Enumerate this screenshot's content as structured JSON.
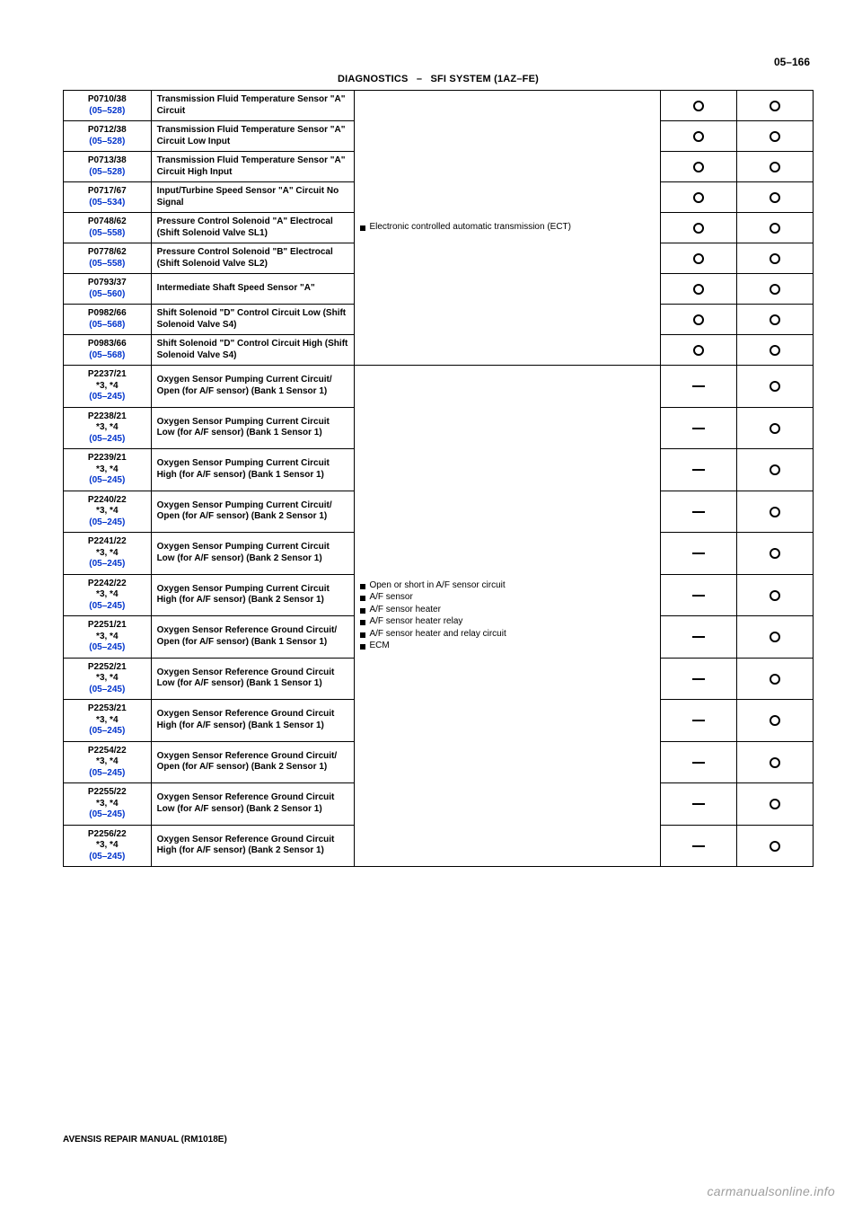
{
  "page_number": "05–166",
  "header_left": "DIAGNOSTICS",
  "header_sep": "–",
  "header_right": "SFI SYSTEM (1AZ–FE)",
  "footer": "AVENSIS REPAIR MANUAL   (RM1018E)",
  "watermark": "carmanualsonline.info",
  "trouble_area_1_lines": [
    "Electronic controlled automatic transmission (ECT)"
  ],
  "trouble_area_2_lines": [
    "Open or short in A/F sensor circuit",
    "A/F sensor",
    "A/F sensor heater",
    "A/F sensor heater relay",
    "A/F sensor heater and relay circuit",
    "ECM"
  ],
  "rows1": [
    {
      "code": "P0710/38",
      "page": "(05–528)",
      "item": "Transmission Fluid Temperature Sensor \"A\" Circuit",
      "mil": "O",
      "mem": "O"
    },
    {
      "code": "P0712/38",
      "page": "(05–528)",
      "item": "Transmission Fluid Temperature Sensor \"A\" Circuit Low Input",
      "mil": "O",
      "mem": "O"
    },
    {
      "code": "P0713/38",
      "page": "(05–528)",
      "item": "Transmission Fluid Temperature Sensor \"A\" Circuit High Input",
      "mil": "O",
      "mem": "O"
    },
    {
      "code": "P0717/67",
      "page": "(05–534)",
      "item": "Input/Turbine Speed Sensor \"A\" Circuit No Signal",
      "mil": "O",
      "mem": "O"
    },
    {
      "code": "P0748/62",
      "page": "(05–558)",
      "item": "Pressure Control Solenoid \"A\" Electrocal (Shift Solenoid Valve SL1)",
      "mil": "O",
      "mem": "O"
    },
    {
      "code": "P0778/62",
      "page": "(05–558)",
      "item": "Pressure Control Solenoid \"B\" Electrocal (Shift Solenoid Valve SL2)",
      "mil": "O",
      "mem": "O"
    },
    {
      "code": "P0793/37",
      "page": "(05–560)",
      "item": "Intermediate Shaft Speed Sensor \"A\"",
      "mil": "O",
      "mem": "O"
    },
    {
      "code": "P0982/66",
      "page": "(05–568)",
      "item": "Shift Solenoid \"D\" Control Circuit Low (Shift Solenoid Valve S4)",
      "mil": "O",
      "mem": "O"
    },
    {
      "code": "P0983/66",
      "page": "(05–568)",
      "item": "Shift Solenoid \"D\" Control Circuit High (Shift Solenoid Valve S4)",
      "mil": "O",
      "mem": "O"
    }
  ],
  "rows2": [
    {
      "code": "P2237/21",
      "note": "*3, *4",
      "page": "(05–245)",
      "item": "Oxygen Sensor Pumping Current Circuit/ Open (for A/F sensor) (Bank 1 Sensor 1)",
      "mil": "-",
      "mem": "O"
    },
    {
      "code": "P2238/21",
      "note": "*3, *4",
      "page": "(05–245)",
      "item": "Oxygen Sensor Pumping Current Circuit Low (for A/F sensor) (Bank 1 Sensor 1)",
      "mil": "-",
      "mem": "O"
    },
    {
      "code": "P2239/21",
      "note": "*3, *4",
      "page": "(05–245)",
      "item": "Oxygen Sensor Pumping Current Circuit High (for A/F sensor) (Bank 1 Sensor 1)",
      "mil": "-",
      "mem": "O"
    },
    {
      "code": "P2240/22",
      "note": "*3, *4",
      "page": "(05–245)",
      "item": "Oxygen Sensor Pumping Current Circuit/ Open (for A/F sensor) (Bank 2 Sensor 1)",
      "mil": "-",
      "mem": "O"
    },
    {
      "code": "P2241/22",
      "note": "*3, *4",
      "page": "(05–245)",
      "item": "Oxygen Sensor Pumping Current Circuit Low (for A/F sensor) (Bank 2 Sensor 1)",
      "mil": "-",
      "mem": "O"
    },
    {
      "code": "P2242/22",
      "note": "*3, *4",
      "page": "(05–245)",
      "item": "Oxygen Sensor Pumping Current Circuit High (for A/F sensor) (Bank 2 Sensor 1)",
      "mil": "-",
      "mem": "O"
    },
    {
      "code": "P2251/21",
      "note": "*3, *4",
      "page": "(05–245)",
      "item": "Oxygen Sensor Reference Ground Circuit/ Open (for A/F sensor) (Bank 1 Sensor 1)",
      "mil": "-",
      "mem": "O"
    },
    {
      "code": "P2252/21",
      "note": "*3, *4",
      "page": "(05–245)",
      "item": "Oxygen Sensor Reference Ground Circuit Low (for A/F sensor) (Bank 1 Sensor 1)",
      "mil": "-",
      "mem": "O"
    },
    {
      "code": "P2253/21",
      "note": "*3, *4",
      "page": "(05–245)",
      "item": "Oxygen Sensor Reference Ground Circuit High (for A/F sensor) (Bank 1 Sensor 1)",
      "mil": "-",
      "mem": "O"
    },
    {
      "code": "P2254/22",
      "note": "*3, *4",
      "page": "(05–245)",
      "item": "Oxygen Sensor Reference Ground Circuit/ Open (for A/F sensor) (Bank 2 Sensor 1)",
      "mil": "-",
      "mem": "O"
    },
    {
      "code": "P2255/22",
      "note": "*3, *4",
      "page": "(05–245)",
      "item": "Oxygen Sensor Reference Ground Circuit Low (for A/F sensor) (Bank 2 Sensor 1)",
      "mil": "-",
      "mem": "O"
    },
    {
      "code": "P2256/22",
      "note": "*3, *4",
      "page": "(05–245)",
      "item": "Oxygen Sensor Reference Ground Circuit High (for A/F sensor) (Bank 2 Sensor 1)",
      "mil": "-",
      "mem": "O"
    }
  ]
}
